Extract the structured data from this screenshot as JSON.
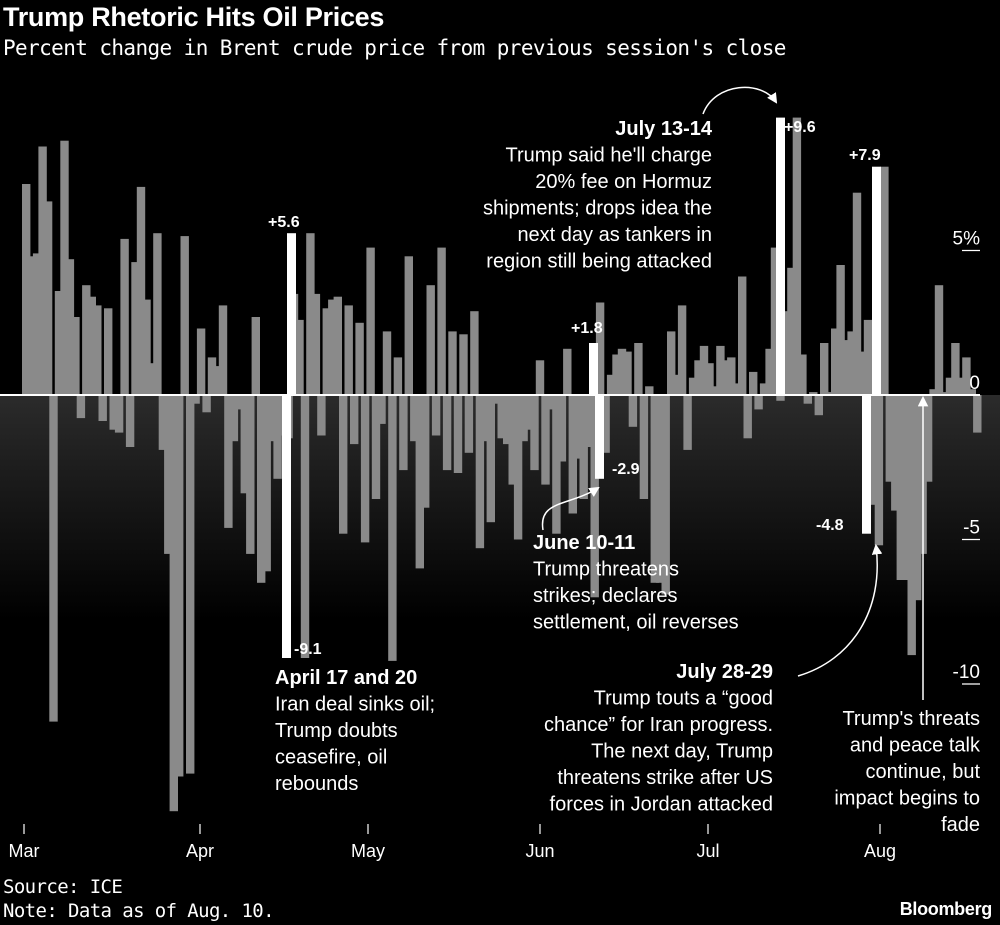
{
  "header": {
    "title": "Trump Rhetoric Hits Oil Prices",
    "subtitle": "Percent change in Brent crude price from previous session's close"
  },
  "footer": {
    "source": "Source: ICE",
    "note": "Note: Data as of Aug. 10.",
    "brand": "Bloomberg"
  },
  "colors": {
    "background": "#000000",
    "bar": "#8a8a8a",
    "highlight": "#ffffff",
    "text": "#ffffff"
  },
  "chart_data": {
    "type": "bar",
    "title": "Trump Rhetoric Hits Oil Prices",
    "subtitle": "Percent change in Brent crude price from previous session's close",
    "ylabel": "",
    "xlabel": "",
    "ylim": [
      -14.5,
      9.6
    ],
    "grid": false,
    "y_ticks": [
      {
        "value": 5,
        "label": "5%"
      },
      {
        "value": 0,
        "label": "0"
      },
      {
        "value": -5,
        "label": "-5"
      },
      {
        "value": -10,
        "label": "-10"
      }
    ],
    "x_ticks": [
      {
        "index": 0,
        "label": "Mar"
      },
      {
        "index": 21,
        "label": "Apr"
      },
      {
        "index": 41,
        "label": "May"
      },
      {
        "index": 62,
        "label": "Jun"
      },
      {
        "index": 82,
        "label": "Jul"
      },
      {
        "index": 103,
        "label": "Aug"
      }
    ],
    "values": [
      7.3,
      4.8,
      4.9,
      8.6,
      6.7,
      -11.3,
      3.6,
      8.8,
      4.7,
      2.7,
      -0.8,
      3.8,
      3.4,
      3.1,
      -0.9,
      3.0,
      -1.2,
      -1.3,
      5.4,
      -1.8,
      4.6,
      7.2,
      3.3,
      1.1,
      5.6,
      -1.9,
      -5.5,
      -14.4,
      -13.2,
      5.5,
      -13.1,
      -0.3,
      2.3,
      -0.6,
      1.3,
      1.0,
      3.1,
      -4.6,
      -1.6,
      -0.5,
      -3.4,
      -5.5,
      2.7,
      -6.5,
      -6.1,
      -1.6,
      -2.9,
      -1.4,
      -1.5,
      3.5,
      2.6,
      -9.1,
      5.6,
      3.5,
      -1.4,
      3.0,
      3.3,
      3.4,
      -4.8,
      3.1,
      -1.7,
      2.5,
      -5.1,
      5.1,
      -3.6,
      -1.0,
      2.2,
      -9.2,
      1.3,
      -2.6,
      4.8,
      -1.6,
      -6.0,
      -3.9,
      3.8,
      -1.4,
      5.1,
      -2.6,
      2.2,
      -2.7,
      2.1,
      -2.0,
      2.9,
      -5.3,
      -1.6,
      -4.4,
      -0.3,
      -1.5,
      -1.7,
      -3.1,
      -5.0,
      -1.6,
      -1.2,
      -2.6,
      1.2,
      -3.1,
      -0.5,
      -4.8,
      -2.3,
      1.6,
      -4.1,
      -2.2,
      -3.6,
      -1.8,
      -7.0,
      3.2,
      -2.0,
      0.7,
      1.4,
      1.6,
      1.5,
      -1.1,
      1.8,
      -3.6,
      0.3,
      -6.5,
      -6.5,
      -6.9,
      2.2,
      0.7,
      3.1,
      -1.9,
      0.6,
      1.2,
      1.7,
      1.1,
      0.3,
      1.7,
      1.2,
      1.3,
      0.4,
      4.1,
      -1.5,
      0.8,
      -0.5,
      0.4,
      1.6,
      5.1,
      -0.2,
      2.9,
      4.4,
      9.6,
      1.4,
      -0.3,
      0.1,
      -0.7,
      1.8,
      0.1,
      2.3,
      4.5,
      1.9,
      2.2,
      7.0,
      1.5,
      2.6,
      -3.8,
      -5.2,
      7.9,
      -3.0,
      -4.0,
      -6.4,
      -6.4,
      -9.0,
      -7.1,
      -5.5,
      -3.0,
      0.2,
      3.8,
      0.1,
      0.6,
      1.8,
      0.6,
      1.3,
      0.2,
      -1.3
    ],
    "highlights": [
      {
        "label": "+5.6",
        "value": 5.6
      },
      {
        "label": "-9.1",
        "value": -9.1
      },
      {
        "label": "+1.8",
        "value": 1.8
      },
      {
        "label": "-2.9",
        "value": -2.9
      },
      {
        "label": "+9.6",
        "value": 9.6
      },
      {
        "label": "+7.9",
        "value": 7.9
      },
      {
        "label": "-4.8",
        "value": -4.8
      }
    ],
    "annotations": [
      {
        "heading": "April 17 and 20",
        "lines": [
          "Iran deal sinks oil;",
          "Trump doubts",
          "ceasefire, oil",
          "rebounds"
        ]
      },
      {
        "heading": "June 10-11",
        "lines": [
          "Trump threatens",
          "strikes; declares",
          "settlement, oil reverses"
        ]
      },
      {
        "heading": "July 13-14",
        "lines": [
          "Trump said he'll charge",
          "20% fee on Hormuz",
          "shipments; drops idea the",
          "next day as tankers in",
          "region still being attacked"
        ]
      },
      {
        "heading": "July 28-29",
        "lines": [
          "Trump touts a “good",
          "chance” for Iran progress.",
          "The next day, Trump",
          "threatens strike after US",
          "forces in Jordan attacked"
        ]
      },
      {
        "heading": "",
        "lines": [
          "Trump's threats",
          "and peace talk",
          "continue, but",
          "impact begins to",
          "fade"
        ]
      }
    ]
  }
}
